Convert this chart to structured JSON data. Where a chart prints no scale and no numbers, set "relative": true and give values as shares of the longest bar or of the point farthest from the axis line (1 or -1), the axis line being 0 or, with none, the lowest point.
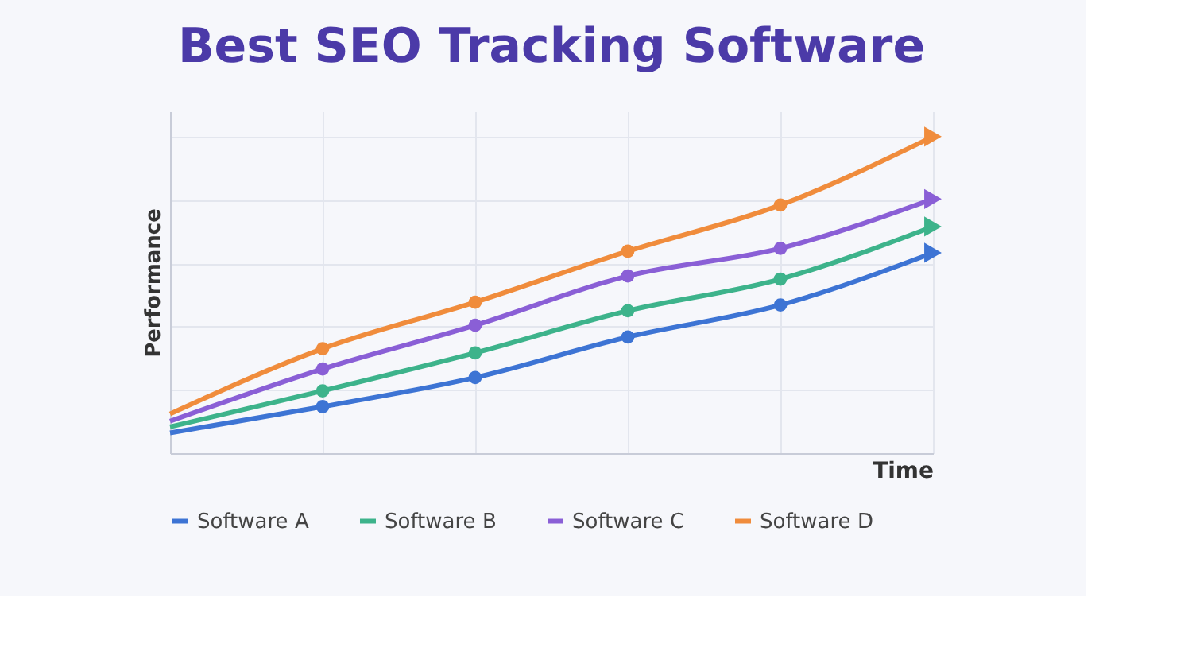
{
  "chart_data": {
    "type": "line",
    "title": "Best SEO Tracking Software",
    "xlabel": "Time",
    "ylabel": "Performance",
    "relative": true,
    "grid": true,
    "legend": "bottom",
    "marker": "circle",
    "line_style": "solid",
    "categories": [
      null,
      null,
      null,
      null,
      null,
      null
    ],
    "series": [
      {
        "name": "Software A",
        "color": "#3d74d4",
        "values": [
          0.064,
          0.147,
          0.239,
          0.367,
          0.468,
          0.633
        ]
      },
      {
        "name": "Software B",
        "color": "#3db38b",
        "values": [
          0.083,
          0.197,
          0.317,
          0.45,
          0.55,
          0.716
        ]
      },
      {
        "name": "Software C",
        "color": "#8a5fd6",
        "values": [
          0.101,
          0.266,
          0.404,
          0.56,
          0.647,
          0.803
        ]
      },
      {
        "name": "Software D",
        "color": "#f08c3c",
        "values": [
          0.124,
          0.33,
          0.477,
          0.638,
          0.784,
          1.0
        ]
      }
    ]
  }
}
